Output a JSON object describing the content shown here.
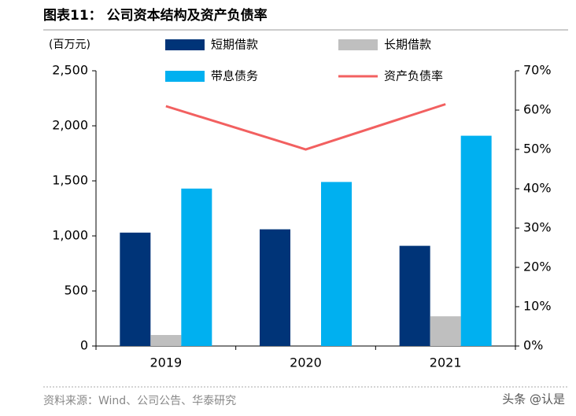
{
  "chart_data": {
    "type": "bar",
    "title": "图表11：  公司资本结构及资产负债率",
    "y_label": "(百万元)",
    "categories": [
      "2019",
      "2020",
      "2021"
    ],
    "series": [
      {
        "name": "短期借款",
        "color": "#003478",
        "values": [
          1030,
          1060,
          910
        ]
      },
      {
        "name": "长期借款",
        "color": "#bfbfbf",
        "values": [
          100,
          0,
          270
        ]
      },
      {
        "name": "带息债务",
        "color": "#00b0f0",
        "values": [
          1430,
          1490,
          1910
        ]
      },
      {
        "name": "资产负债率",
        "color": "#f26060",
        "type": "line",
        "axis": "y2",
        "values": [
          61,
          50,
          61.5
        ]
      }
    ],
    "ylim": [
      0,
      2500
    ],
    "yticks": [
      0,
      500,
      {
        "value": 1000,
        "label": "1,000"
      },
      {
        "value": 1500,
        "label": "1,500"
      },
      {
        "value": 2000,
        "label": "2,000"
      },
      {
        "value": 2500,
        "label": "2,500"
      }
    ],
    "y2lim": [
      0,
      70
    ],
    "y2ticks": [
      {
        "value": 0,
        "label": "0%"
      },
      {
        "value": 10,
        "label": "10%"
      },
      {
        "value": 20,
        "label": "20%"
      },
      {
        "value": 30,
        "label": "30%"
      },
      {
        "value": 40,
        "label": "40%"
      },
      {
        "value": 50,
        "label": "50%"
      },
      {
        "value": 60,
        "label": "60%"
      },
      {
        "value": 70,
        "label": "70%"
      }
    ],
    "source": "资料来源：Wind、公司公告、华泰研究",
    "watermark": "头条 @认是"
  }
}
